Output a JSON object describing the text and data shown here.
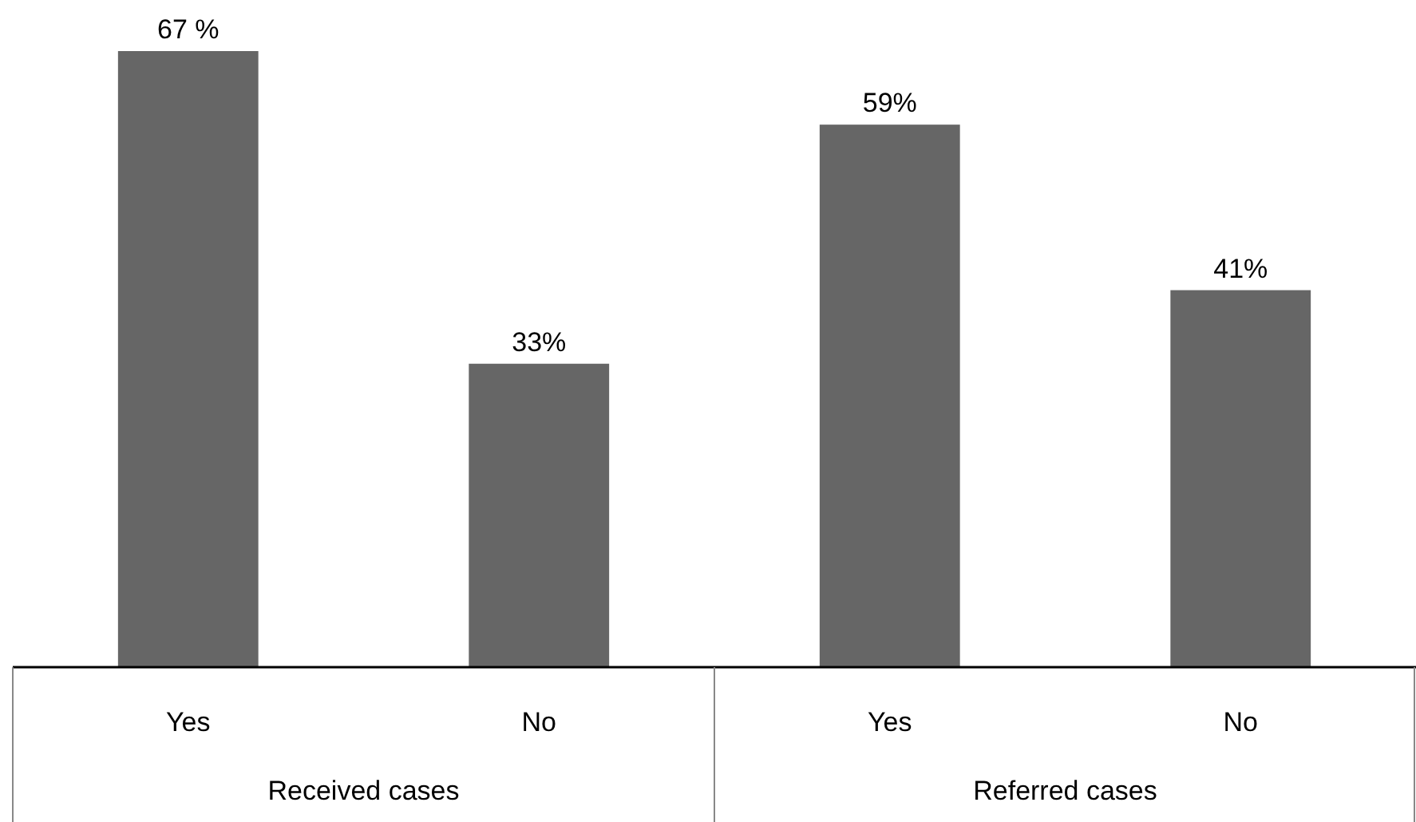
{
  "chart_data": {
    "type": "bar",
    "categories": [
      "Yes",
      "No",
      "Yes",
      "No"
    ],
    "values": [
      67,
      33,
      59,
      41
    ],
    "color": "#666666",
    "value_labels": [
      "67 %",
      "33%",
      "59%",
      "41%"
    ],
    "annotations": [
      "Received cases",
      "Referred cases"
    ]
  }
}
